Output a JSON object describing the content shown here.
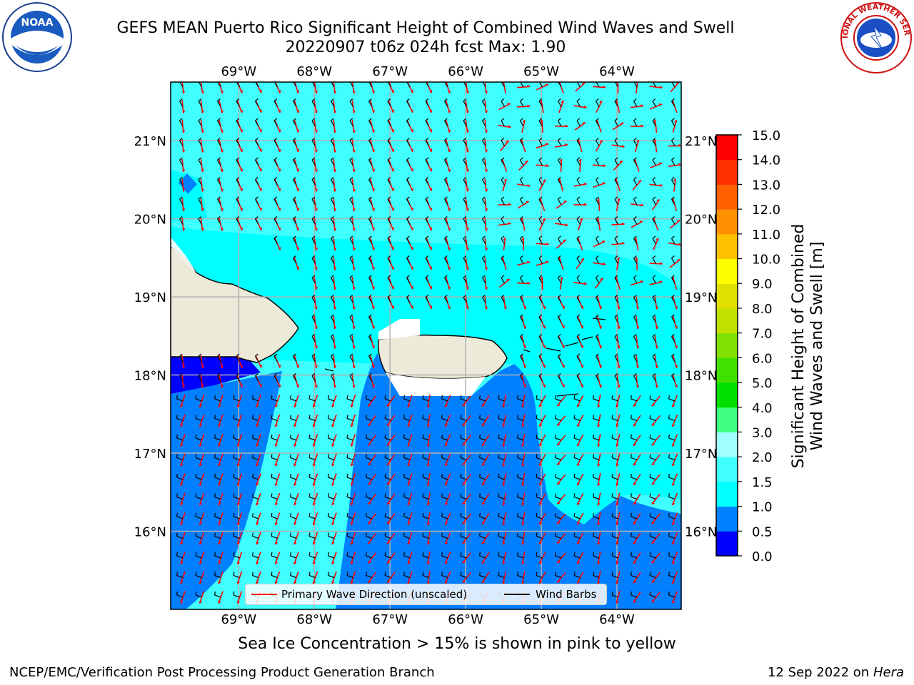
{
  "title": {
    "line1": "GEFS MEAN Puerto Rico Significant Height of Combined Wind Waves and Swell",
    "line2": "20220907 t06z 024h fcst   Max: 1.90"
  },
  "logos": {
    "left": "NOAA",
    "right": "NATIONAL WEATHER SERVICE"
  },
  "map": {
    "lon_range": [
      -69.9,
      -63.15
    ],
    "lat_range": [
      15.0,
      21.75
    ],
    "lon_ticks": [
      "69°W",
      "68°W",
      "67°W",
      "66°W",
      "65°W",
      "64°W"
    ],
    "lat_ticks": [
      "16°N",
      "17°N",
      "18°N",
      "19°N",
      "20°N",
      "21°N"
    ],
    "grid": true,
    "land_color": "#eeead9"
  },
  "legend": {
    "placement": "bottom-center",
    "wave_label": "Primary Wave Direction (unscaled)",
    "barb_label": "Wind Barbs",
    "wave_color": "#ff0000",
    "barb_color": "#000000"
  },
  "colorbar": {
    "label_line1": "Significant Height of Combined",
    "label_line2": "Wind Waves and Swell [m]",
    "ticks": [
      "0.0",
      "0.5",
      "1.0",
      "1.5",
      "2.0",
      "3.0",
      "4.0",
      "5.0",
      "6.0",
      "7.0",
      "8.0",
      "9.0",
      "10.0",
      "11.0",
      "12.0",
      "13.0",
      "14.0",
      "15.0"
    ],
    "colors": [
      "#0000ff",
      "#0080ff",
      "#00ffff",
      "#40ffff",
      "#a0ffff",
      "#40ff80",
      "#00e000",
      "#40e000",
      "#80e000",
      "#c0e000",
      "#e0e000",
      "#ffff00",
      "#ffc000",
      "#ff9000",
      "#ff6000",
      "#ff3000",
      "#ff0000"
    ]
  },
  "notes": {
    "ice": "Sea Ice Concentration > 15% is shown in pink to yellow",
    "footer_left": "NCEP/EMC/Verification Post Processing Product Generation Branch",
    "footer_date": "12 Sep 2022 on",
    "footer_machine": "Hera"
  }
}
